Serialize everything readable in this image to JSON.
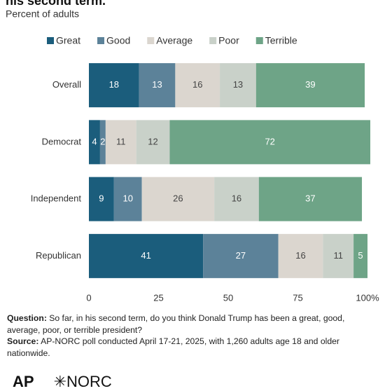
{
  "chart_data": {
    "type": "bar",
    "orientation": "horizontal",
    "stacked": true,
    "title": "his second term.",
    "subtitle": "Percent of adults",
    "categories": [
      "Overall",
      "Democrat",
      "Independent",
      "Republican"
    ],
    "series": [
      {
        "name": "Great",
        "color": "#1b5d7c",
        "values": [
          18,
          4,
          9,
          41
        ]
      },
      {
        "name": "Good",
        "color": "#5c8299",
        "values": [
          13,
          2,
          10,
          27
        ]
      },
      {
        "name": "Average",
        "color": "#dbd6cf",
        "values": [
          16,
          11,
          26,
          16
        ]
      },
      {
        "name": "Poor",
        "color": "#c9d1c9",
        "values": [
          13,
          12,
          16,
          11
        ]
      },
      {
        "name": "Terrible",
        "color": "#6ea487",
        "values": [
          39,
          72,
          37,
          5
        ]
      }
    ],
    "xlim": [
      0,
      100
    ],
    "xticks": [
      0,
      25,
      50,
      75,
      {
        "value": 100,
        "label": "100%"
      }
    ],
    "grid": false,
    "legend": "top"
  },
  "notes": {
    "question_label": "Question:",
    "question": "So far, in his second term, do you think Donald Trump has been a great, good, average, poor, or terrible president?",
    "source_label": "Source:",
    "source": "AP-NORC poll conducted April 17-21, 2025, with 1,260 adults age 18 and older nationwide."
  },
  "logos": [
    "AP",
    "✳NORC"
  ]
}
